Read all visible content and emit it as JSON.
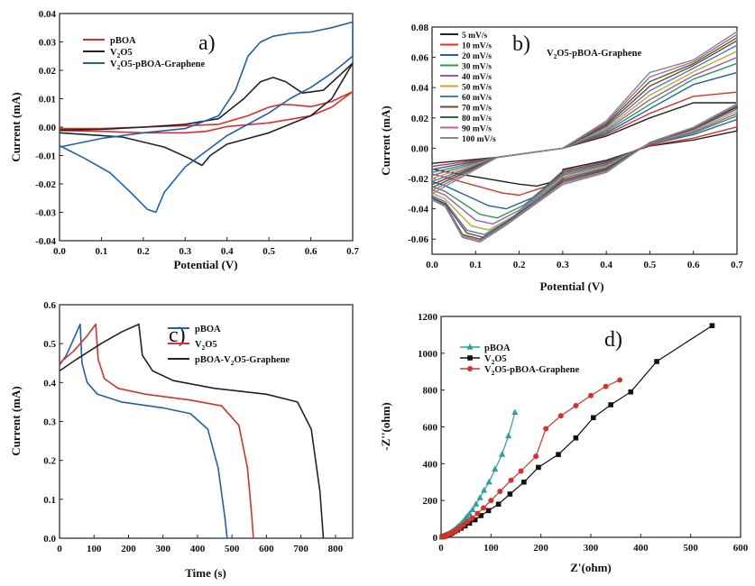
{
  "chart_data": [
    {
      "panel_label": "a)",
      "type": "line",
      "xlabel": "Potential (V)",
      "ylabel": "Current (mA)",
      "xlim": [
        0.0,
        0.7
      ],
      "ylim": [
        -0.04,
        0.04
      ],
      "xticks": [
        "0.0",
        "0.1",
        "0.2",
        "0.3",
        "0.4",
        "0.5",
        "0.6",
        "0.7"
      ],
      "yticks": [
        "-0.04",
        "-0.03",
        "-0.02",
        "-0.01",
        "0.00",
        "0.01",
        "0.02",
        "0.03",
        "0.04"
      ],
      "legend_position": "top-left",
      "series": [
        {
          "name": "pBOA",
          "name_sub": "",
          "name_suffix": "",
          "color": "#d9302b",
          "x": [
            0.0,
            0.1,
            0.2,
            0.3,
            0.38,
            0.45,
            0.5,
            0.53,
            0.56,
            0.6,
            0.65,
            0.7,
            0.65,
            0.6,
            0.5,
            0.4,
            0.35,
            0.3,
            0.2,
            0.1,
            0.0
          ],
          "y": [
            -0.0005,
            -0.0005,
            0.0,
            0.0005,
            0.001,
            0.004,
            0.007,
            0.008,
            0.0078,
            0.0072,
            0.009,
            0.0125,
            0.007,
            0.004,
            0.0015,
            0.0002,
            -0.0015,
            -0.002,
            -0.002,
            -0.0015,
            -0.0012
          ]
        },
        {
          "name": "V",
          "name_sub": "2",
          "name_suffix": "O5",
          "color": "#222222",
          "x": [
            0.0,
            0.1,
            0.2,
            0.3,
            0.38,
            0.44,
            0.48,
            0.51,
            0.54,
            0.58,
            0.63,
            0.7,
            0.65,
            0.6,
            0.5,
            0.45,
            0.4,
            0.36,
            0.34,
            0.31,
            0.25,
            0.15,
            0.0
          ],
          "y": [
            -0.001,
            -0.0008,
            0.0,
            0.001,
            0.003,
            0.01,
            0.016,
            0.0175,
            0.016,
            0.012,
            0.013,
            0.0225,
            0.01,
            0.004,
            -0.002,
            -0.004,
            -0.006,
            -0.01,
            -0.0135,
            -0.011,
            -0.007,
            -0.0035,
            -0.002
          ]
        },
        {
          "name": "V",
          "name_sub": "2",
          "name_suffix": "O5-pBOA-Graphene",
          "color": "#1f5fb0",
          "x": [
            0.0,
            0.1,
            0.2,
            0.3,
            0.38,
            0.42,
            0.45,
            0.48,
            0.51,
            0.55,
            0.6,
            0.65,
            0.7,
            0.7,
            0.65,
            0.6,
            0.55,
            0.5,
            0.4,
            0.3,
            0.25,
            0.23,
            0.21,
            0.17,
            0.12,
            0.06,
            0.0
          ],
          "y": [
            -0.007,
            -0.004,
            -0.002,
            -0.0005,
            0.004,
            0.013,
            0.025,
            0.03,
            0.032,
            0.033,
            0.0335,
            0.035,
            0.037,
            0.025,
            0.019,
            0.014,
            0.01,
            0.005,
            -0.003,
            -0.014,
            -0.023,
            -0.03,
            -0.029,
            -0.023,
            -0.016,
            -0.011,
            -0.0065
          ]
        }
      ]
    },
    {
      "panel_label": "b)",
      "type": "line",
      "xlabel": "Potential (V)",
      "ylabel": "Current (mA)",
      "annotation": "V",
      "annotation_sub": "2",
      "annotation_suffix": "O5-pBOA-Graphene",
      "xlim": [
        0.0,
        0.7
      ],
      "ylim": [
        -0.07,
        0.08
      ],
      "xticks": [
        "0.0",
        "0.1",
        "0.2",
        "0.3",
        "0.4",
        "0.5",
        "0.6",
        "0.7"
      ],
      "yticks": [
        "-0.06",
        "-0.04",
        "-0.02",
        "0.00",
        "0.02",
        "0.04",
        "0.06",
        "0.08"
      ],
      "legend_position": "top-left",
      "series": [
        {
          "name": "5 mV/s",
          "color": "#222222",
          "ymax": 0.03,
          "ymin": -0.025,
          "xpeak": 0.24
        },
        {
          "name": "10 mV/s",
          "color": "#d9302b",
          "ymax": 0.037,
          "ymin": -0.031,
          "xpeak": 0.2
        },
        {
          "name": "20 mV/s",
          "color": "#1f5fb0",
          "ymax": 0.05,
          "ymin": -0.04,
          "xpeak": 0.17
        },
        {
          "name": "30 mV/s",
          "color": "#2f9a4a",
          "ymax": 0.056,
          "ymin": -0.046,
          "xpeak": 0.15
        },
        {
          "name": "40 mV/s",
          "color": "#9b59b6",
          "ymax": 0.06,
          "ymin": -0.05,
          "xpeak": 0.14
        },
        {
          "name": "50 mV/s",
          "color": "#d6a020",
          "ymax": 0.064,
          "ymin": -0.054,
          "xpeak": 0.13
        },
        {
          "name": "60 mV/s",
          "color": "#3a7fd0",
          "ymax": 0.068,
          "ymin": -0.057,
          "xpeak": 0.12
        },
        {
          "name": "70 mV/s",
          "color": "#8b3a2a",
          "ymax": 0.071,
          "ymin": -0.059,
          "xpeak": 0.12
        },
        {
          "name": "80 mV/s",
          "color": "#2b6b3a",
          "ymax": 0.073,
          "ymin": -0.06,
          "xpeak": 0.11
        },
        {
          "name": "90 mV/s",
          "color": "#c06090",
          "ymax": 0.075,
          "ymin": -0.061,
          "xpeak": 0.11
        },
        {
          "name": "100 mV/s",
          "color": "#7a8a9a",
          "ymax": 0.077,
          "ymin": -0.062,
          "xpeak": 0.11
        }
      ]
    },
    {
      "panel_label": "c)",
      "type": "line",
      "xlabel": "Time (s)",
      "ylabel": "Current (mA)",
      "xlim": [
        0,
        850
      ],
      "ylim": [
        0.0,
        0.6
      ],
      "xticks": [
        "0",
        "100",
        "200",
        "300",
        "400",
        "500",
        "600",
        "700",
        "800"
      ],
      "yticks": [
        "0.0",
        "0.1",
        "0.2",
        "0.3",
        "0.4",
        "0.5",
        "0.6"
      ],
      "legend_position": "top-right",
      "series": [
        {
          "name": "pBOA",
          "name_sub": "",
          "name_suffix": "",
          "color": "#1f5fb0",
          "x": [
            0,
            20,
            45,
            60,
            65,
            80,
            110,
            180,
            300,
            380,
            430,
            460,
            480,
            486
          ],
          "y": [
            0.445,
            0.47,
            0.52,
            0.55,
            0.45,
            0.4,
            0.37,
            0.35,
            0.335,
            0.32,
            0.28,
            0.18,
            0.05,
            0.0
          ]
        },
        {
          "name": "V",
          "name_sub": "2",
          "name_suffix": "O5",
          "color": "#d9302b",
          "x": [
            0,
            40,
            80,
            105,
            112,
            130,
            170,
            250,
            380,
            470,
            520,
            545,
            557,
            562
          ],
          "y": [
            0.45,
            0.48,
            0.52,
            0.55,
            0.46,
            0.41,
            0.385,
            0.37,
            0.355,
            0.34,
            0.29,
            0.18,
            0.06,
            0.0
          ]
        },
        {
          "name": "pBOA-V",
          "name_sub": "2",
          "name_suffix": "O5-Graphene",
          "color": "#222222",
          "x": [
            0,
            50,
            120,
            180,
            230,
            240,
            270,
            330,
            450,
            600,
            690,
            730,
            755,
            765
          ],
          "y": [
            0.43,
            0.46,
            0.5,
            0.53,
            0.55,
            0.47,
            0.43,
            0.405,
            0.385,
            0.37,
            0.35,
            0.28,
            0.12,
            0.0
          ]
        }
      ]
    },
    {
      "panel_label": "d)",
      "type": "scatter",
      "xlabel": "Z'(ohm)",
      "ylabel": "-Z''(ohm)",
      "xlim": [
        0,
        600
      ],
      "ylim": [
        0,
        1200
      ],
      "xticks": [
        "0",
        "100",
        "200",
        "300",
        "400",
        "500",
        "600"
      ],
      "yticks": [
        "0",
        "200",
        "400",
        "600",
        "800",
        "1000",
        "1200"
      ],
      "legend_position": "top-left",
      "series": [
        {
          "name": "pBOA",
          "name_sub": "",
          "name_suffix": "",
          "color": "#2aa19a",
          "marker": "triangle",
          "x": [
            3,
            6,
            9,
            12,
            15,
            18,
            21,
            24,
            27,
            30,
            33,
            36,
            40,
            44,
            48,
            52,
            57,
            63,
            70,
            78,
            86,
            96,
            108,
            122,
            135,
            148
          ],
          "y": [
            3,
            6,
            10,
            14,
            18,
            23,
            28,
            34,
            40,
            47,
            55,
            63,
            73,
            85,
            98,
            112,
            128,
            150,
            180,
            215,
            255,
            300,
            370,
            450,
            550,
            678
          ]
        },
        {
          "name": "V",
          "name_sub": "2",
          "name_suffix": "O5",
          "color": "#111111",
          "marker": "square",
          "x": [
            2,
            5,
            8,
            11,
            14,
            18,
            22,
            27,
            33,
            40,
            48,
            57,
            68,
            80,
            95,
            115,
            138,
            166,
            195,
            235,
            270,
            305,
            340,
            380,
            432,
            543
          ],
          "y": [
            2,
            4,
            7,
            10,
            14,
            18,
            24,
            31,
            40,
            50,
            62,
            77,
            95,
            118,
            145,
            180,
            235,
            300,
            380,
            450,
            540,
            650,
            720,
            790,
            955,
            1150
          ]
        },
        {
          "name": "V",
          "name_sub": "2",
          "name_suffix": "O5-pBOA-Graphene",
          "color": "#d9302b",
          "marker": "circle",
          "x": [
            2,
            5,
            8,
            11,
            14,
            18,
            22,
            27,
            32,
            38,
            45,
            53,
            62,
            73,
            85,
            100,
            118,
            140,
            160,
            190,
            210,
            240,
            270,
            300,
            330,
            358
          ],
          "y": [
            2,
            4,
            7,
            11,
            15,
            20,
            26,
            34,
            43,
            54,
            68,
            85,
            105,
            130,
            160,
            200,
            250,
            310,
            360,
            440,
            590,
            660,
            715,
            770,
            820,
            855
          ]
        }
      ]
    }
  ]
}
